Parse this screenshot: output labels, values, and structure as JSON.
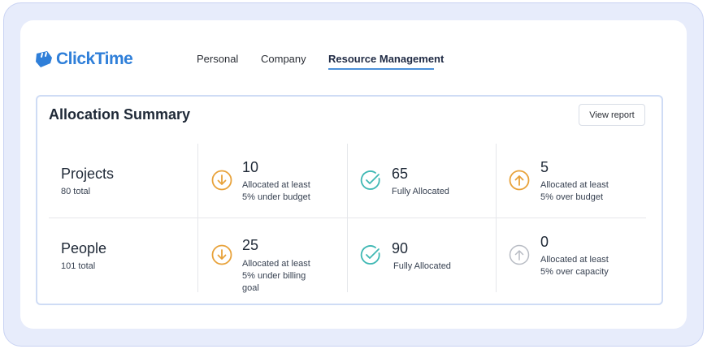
{
  "app": {
    "logo_text": "ClickTime"
  },
  "nav": {
    "items": [
      {
        "label": "Personal"
      },
      {
        "label": "Company"
      },
      {
        "label": "Resource Management",
        "active": true
      }
    ]
  },
  "summary": {
    "title": "Allocation Summary",
    "view_report_label": "View report",
    "rows": [
      {
        "label": "Projects",
        "total": "80 total",
        "stats": [
          {
            "value": "10",
            "line1": "Allocated at least",
            "line2": "5% under budget",
            "icon": "arrow-down-circle-icon",
            "color": "#e8a23a"
          },
          {
            "value": "65",
            "line1": "Fully Allocated",
            "icon": "check-circle-icon",
            "color": "#3fb8b4"
          },
          {
            "value": "5",
            "line1": "Allocated at least",
            "line2": "5% over budget",
            "icon": "arrow-up-circle-icon",
            "color": "#e8a23a"
          }
        ]
      },
      {
        "label": "People",
        "total": "101 total",
        "stats": [
          {
            "value": "25",
            "line1": "Allocated at least",
            "line2": "5% under billing",
            "line3": "goal",
            "icon": "arrow-down-circle-icon",
            "color": "#e8a23a"
          },
          {
            "value": "90",
            "line1": "Fully Allocated",
            "icon": "check-circle-icon",
            "color": "#3fb8b4"
          },
          {
            "value": "0",
            "line1": "Allocated at least",
            "line2": "5% over capacity",
            "icon": "arrow-up-circle-icon",
            "color": "#b8bcc4"
          }
        ]
      }
    ]
  }
}
